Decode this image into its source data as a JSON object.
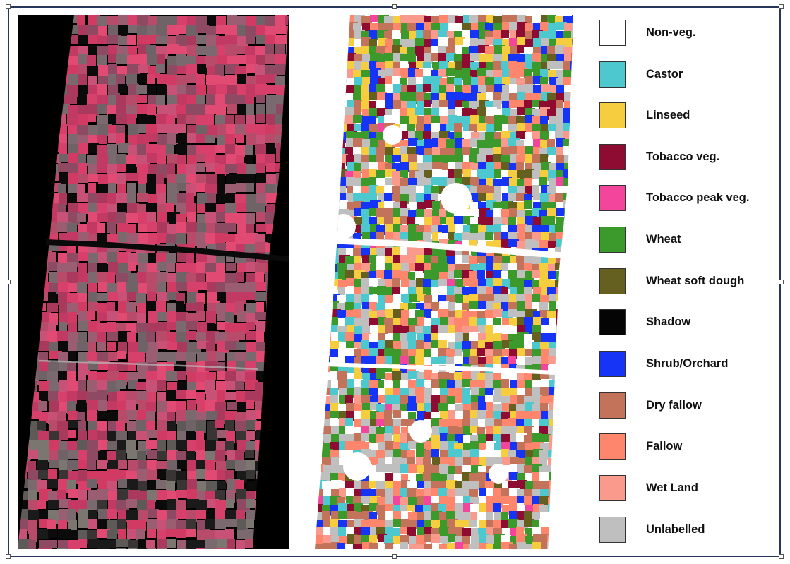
{
  "figure": {
    "left_panel": "fcc-image",
    "right_panel": "classified-map"
  },
  "legend": [
    {
      "label": "Non-veg.",
      "color": "#ffffff"
    },
    {
      "label": "Castor",
      "color": "#4ec8cf"
    },
    {
      "label": "Linseed",
      "color": "#f5cd3f"
    },
    {
      "label": "Tobacco veg.",
      "color": "#8e0b31"
    },
    {
      "label": "Tobacco peak veg.",
      "color": "#f2459b"
    },
    {
      "label": "Wheat",
      "color": "#3c992b"
    },
    {
      "label": "Wheat soft dough",
      "color": "#666020"
    },
    {
      "label": "Shadow",
      "color": "#050505"
    },
    {
      "label": "Shrub/Orchard",
      "color": "#1634f5"
    },
    {
      "label": "Dry fallow",
      "color": "#c3735a"
    },
    {
      "label": "Fallow",
      "color": "#fd866c"
    },
    {
      "label": "Wet Land",
      "color": "#f99a8d"
    },
    {
      "label": "Unlabelled",
      "color": "#bfbfbf"
    }
  ]
}
